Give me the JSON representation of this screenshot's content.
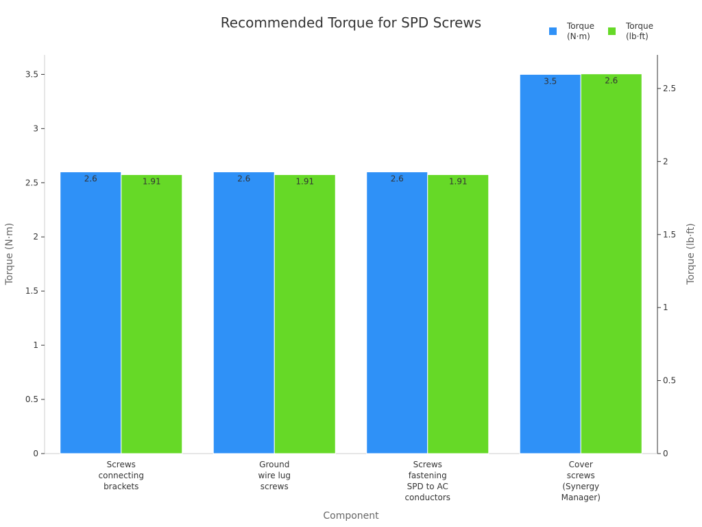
{
  "chart_data": {
    "type": "bar",
    "title": "Recommended Torque for SPD Screws",
    "xlabel": "Component",
    "ylabel_left": "Torque (N·m)",
    "ylabel_right": "Torque (lb·ft)",
    "categories": [
      [
        "Screws",
        "connecting",
        "brackets"
      ],
      [
        "Ground",
        "wire lug",
        "screws"
      ],
      [
        "Screws",
        "fastening",
        "SPD to AC",
        "conductors"
      ],
      [
        "Cover",
        "screws",
        "(Synergy",
        "Manager)"
      ]
    ],
    "series": [
      {
        "name": [
          "Torque",
          "(N·m)"
        ],
        "values": [
          2.6,
          2.6,
          2.6,
          3.5
        ],
        "labels": [
          "2.6",
          "2.6",
          "2.6",
          "3.5"
        ],
        "color": "#2f91f7",
        "axis": "left"
      },
      {
        "name": [
          "Torque",
          "(lb·ft)"
        ],
        "values": [
          1.91,
          1.91,
          1.91,
          2.6
        ],
        "labels": [
          "1.91",
          "1.91",
          "1.91",
          "2.6"
        ],
        "color": "#66d927",
        "axis": "right"
      }
    ],
    "ylim_left": [
      0,
      3.68
    ],
    "yticks_left": [
      "0",
      "0.5",
      "1",
      "1.5",
      "2",
      "2.5",
      "3",
      "3.5"
    ],
    "ylim_right": [
      0,
      2.73
    ],
    "yticks_right": [
      "0",
      "0.5",
      "1",
      "1.5",
      "2",
      "2.5"
    ],
    "grid": false,
    "legend_position": "top-right"
  }
}
